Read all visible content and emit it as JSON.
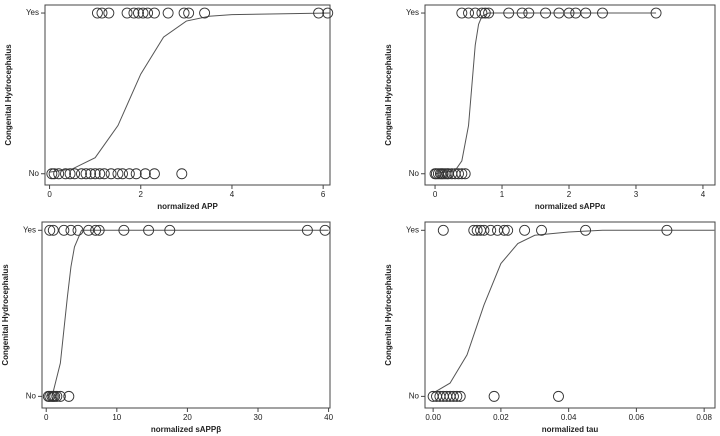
{
  "chart_data": [
    {
      "type": "scatter",
      "x_label": "normalized APP",
      "y_label": "Congenital Hydrocephalus",
      "xlim": [
        -0.1,
        6.15
      ],
      "xticks": [
        0,
        2,
        4,
        6
      ],
      "ylim": [
        -0.07,
        1.05
      ],
      "yticks": [
        {
          "value": 0,
          "label": "No"
        },
        {
          "value": 1,
          "label": "Yes"
        }
      ],
      "x": [
        0.05,
        0.1,
        0.2,
        0.35,
        0.45,
        0.55,
        0.7,
        0.8,
        0.9,
        1.0,
        1.1,
        1.2,
        1.35,
        1.5,
        1.6,
        1.75,
        1.9,
        2.1,
        2.3,
        2.9,
        1.05,
        1.15,
        1.3,
        1.7,
        1.85,
        1.95,
        2.05,
        2.15,
        2.3,
        2.6,
        2.95,
        3.05,
        3.4,
        5.9,
        6.1
      ],
      "values": [
        0,
        0,
        0,
        0,
        0,
        0,
        0,
        0,
        0,
        0,
        0,
        0,
        0,
        0,
        0,
        0,
        0,
        0,
        0,
        0,
        1,
        1,
        1,
        1,
        1,
        1,
        1,
        1,
        1,
        1,
        1,
        1,
        1,
        1,
        1
      ],
      "curve": {
        "x": [
          0,
          0.5,
          1,
          1.5,
          2,
          2.5,
          3,
          3.5,
          4,
          5,
          6.15
        ],
        "values": [
          0.01,
          0.03,
          0.1,
          0.3,
          0.62,
          0.85,
          0.95,
          0.98,
          0.99,
          0.995,
          1
        ]
      }
    },
    {
      "type": "scatter",
      "x_label": "normalized sAPPα",
      "y_label": "Congenital Hydrocephalus",
      "xlim": [
        -0.15,
        4.18
      ],
      "xticks": [
        0,
        1,
        2,
        3,
        4
      ],
      "ylim": [
        -0.07,
        1.05
      ],
      "yticks": [
        {
          "value": 0,
          "label": "No"
        },
        {
          "value": 1,
          "label": "Yes"
        }
      ],
      "x": [
        0.0,
        0.02,
        0.05,
        0.08,
        0.1,
        0.12,
        0.15,
        0.18,
        0.2,
        0.25,
        0.3,
        0.35,
        0.4,
        0.45,
        0.4,
        0.5,
        0.6,
        0.7,
        0.75,
        0.8,
        1.1,
        1.3,
        1.4,
        1.65,
        1.85,
        2.0,
        2.1,
        2.25,
        2.5,
        3.3
      ],
      "values": [
        0,
        0,
        0,
        0,
        0,
        0,
        0,
        0,
        0,
        0,
        0,
        0,
        0,
        0,
        1,
        1,
        1,
        1,
        1,
        1,
        1,
        1,
        1,
        1,
        1,
        1,
        1,
        1,
        1,
        1
      ],
      "curve": {
        "x": [
          0,
          0.3,
          0.4,
          0.5,
          0.55,
          0.6,
          0.65,
          0.7,
          0.8,
          3.3
        ],
        "values": [
          0,
          0.02,
          0.08,
          0.3,
          0.55,
          0.8,
          0.93,
          0.98,
          1,
          1
        ]
      }
    },
    {
      "type": "scatter",
      "x_label": "normalized sAPPβ",
      "y_label": "Congenital Hydrocephalus",
      "xlim": [
        -0.6,
        40.2
      ],
      "xticks": [
        0,
        10,
        20,
        30,
        40
      ],
      "ylim": [
        -0.07,
        1.05
      ],
      "yticks": [
        {
          "value": 0,
          "label": "No"
        },
        {
          "value": 1,
          "label": "Yes"
        }
      ],
      "x": [
        0.3,
        0.5,
        0.8,
        1,
        1.2,
        1.5,
        2,
        3.2,
        0.5,
        1,
        2.5,
        3.5,
        4.5,
        6,
        7,
        7.5,
        11,
        14.5,
        17.5,
        37,
        39.5
      ],
      "values": [
        0,
        0,
        0,
        0,
        0,
        0,
        0,
        0,
        1,
        1,
        1,
        1,
        1,
        1,
        1,
        1,
        1,
        1,
        1,
        1,
        1
      ],
      "curve": {
        "x": [
          0,
          1,
          2,
          2.5,
          3,
          3.5,
          4,
          5,
          40
        ],
        "values": [
          0,
          0.03,
          0.2,
          0.4,
          0.6,
          0.78,
          0.9,
          1,
          1
        ]
      }
    },
    {
      "type": "scatter",
      "x_label": "normalized tau",
      "y_label": "Congenital Hydrocephalus",
      "xlim": [
        -0.0024,
        0.0832
      ],
      "xticks": [
        {
          "value": 0,
          "label": "0.00"
        },
        {
          "value": 0.02,
          "label": "0.02"
        },
        {
          "value": 0.04,
          "label": "0.04"
        },
        {
          "value": 0.06,
          "label": "0.06"
        },
        {
          "value": 0.08,
          "label": "0.08"
        }
      ],
      "ylim": [
        -0.07,
        1.05
      ],
      "yticks": [
        {
          "value": 0,
          "label": "No"
        },
        {
          "value": 1,
          "label": "Yes"
        }
      ],
      "x": [
        0.0,
        0.001,
        0.002,
        0.003,
        0.004,
        0.005,
        0.006,
        0.007,
        0.008,
        0.018,
        0.037,
        0.003,
        0.012,
        0.013,
        0.014,
        0.015,
        0.017,
        0.019,
        0.021,
        0.022,
        0.027,
        0.032,
        0.045,
        0.069
      ],
      "values": [
        0,
        0,
        0,
        0,
        0,
        0,
        0,
        0,
        0,
        0,
        0,
        1,
        1,
        1,
        1,
        1,
        1,
        1,
        1,
        1,
        1,
        1,
        1,
        1
      ],
      "curve": {
        "x": [
          0,
          0.005,
          0.01,
          0.015,
          0.02,
          0.025,
          0.03,
          0.04,
          0.05,
          0.083
        ],
        "values": [
          0.02,
          0.08,
          0.25,
          0.55,
          0.8,
          0.92,
          0.97,
          0.99,
          1,
          1
        ]
      }
    }
  ]
}
